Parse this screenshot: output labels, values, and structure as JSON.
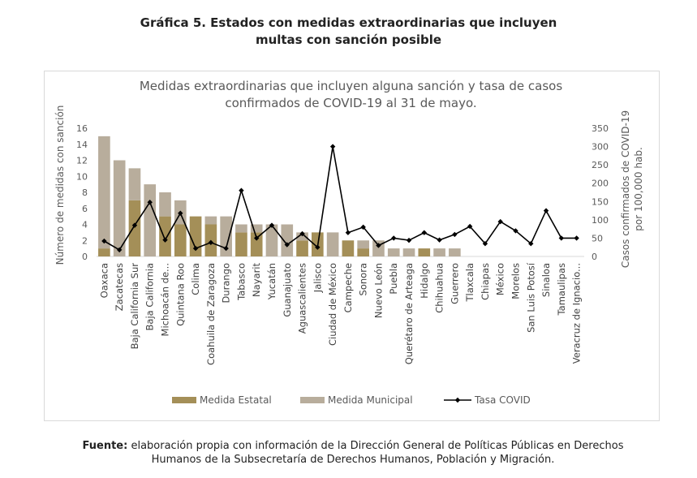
{
  "figure": {
    "caption_line1": "Gráfica 5. Estados con medidas extraordinarias que incluyen",
    "caption_line2": "multas con sanción posible",
    "source_label": "Fuente:",
    "source_line1": "elaboración propia con información de la Dirección General de Políticas Públicas en Derechos",
    "source_line2": "Humanos de la Subsecretaría de Derechos Humanos, Población y Migración."
  },
  "chart_data": {
    "type": "bar",
    "title_line1": "Medidas extraordinarias que incluyen alguna sanción y tasa de casos",
    "title_line2": "confirmados de COVID-19 al 31 de mayo.",
    "ylabel": "Número de medidas con sanción",
    "y2label_line1": "Casos confirmados de COVID-19",
    "y2label_line2": "por 100,000 hab.",
    "ylim": [
      0,
      16
    ],
    "y2lim": [
      0,
      350
    ],
    "yticks": [
      0,
      2,
      4,
      6,
      8,
      10,
      12,
      14,
      16
    ],
    "y2ticks": [
      0,
      50,
      100,
      150,
      200,
      250,
      300,
      350
    ],
    "grid": false,
    "legend_position": "bottom",
    "colors": {
      "estatal": "#a48f58",
      "municipal": "#b8ad9c",
      "covid": "#000000",
      "axis_text": "#595959"
    },
    "categories": [
      "Oaxaca",
      "Zacatecas",
      "Baja California Sur",
      "Baja California",
      "Michoacán de...",
      "Quintana Roo",
      "Colima",
      "Coahuila de Zaragoza",
      "Durango",
      "Tabasco",
      "Nayarit",
      "Yucatán",
      "Guanajuato",
      "Aguascalientes",
      "Jalisco",
      "Ciudad de México",
      "Campeche",
      "Sonora",
      "Nuevo León",
      "Puebla",
      "Querétaro de Arteaga",
      "Hidalgo",
      "Chihuahua",
      "Guerrero",
      "Tlaxcala",
      "Chiapas",
      "México",
      "Morelos",
      "San Luis Potosí",
      "Sinaloa",
      "Tamaulipas",
      "Veracruz de Ignacio..."
    ],
    "series": [
      {
        "name": "Medida Estatal",
        "kind": "bar",
        "axis": "left",
        "values": [
          1,
          0,
          7,
          0,
          5,
          4,
          5,
          4,
          0,
          3,
          3,
          0,
          0,
          2,
          3,
          0,
          2,
          1,
          0,
          0,
          0,
          1,
          0,
          0,
          0,
          0,
          0,
          0,
          0,
          0,
          0,
          0
        ]
      },
      {
        "name": "Medida Municipal",
        "kind": "bar",
        "axis": "left",
        "values": [
          14,
          12,
          4,
          9,
          3,
          3,
          0,
          1,
          5,
          1,
          1,
          4,
          4,
          1,
          0,
          3,
          0,
          1,
          2,
          1,
          1,
          0,
          1,
          1,
          0,
          0,
          0,
          0,
          0,
          0,
          0,
          0
        ]
      },
      {
        "name": "Tasa COVID",
        "kind": "line",
        "axis": "right",
        "values": [
          42,
          18,
          85,
          148,
          45,
          118,
          22,
          38,
          22,
          180,
          50,
          85,
          32,
          62,
          25,
          300,
          65,
          80,
          30,
          50,
          44,
          65,
          45,
          60,
          82,
          35,
          95,
          70,
          35,
          125,
          50,
          50
        ]
      }
    ]
  }
}
